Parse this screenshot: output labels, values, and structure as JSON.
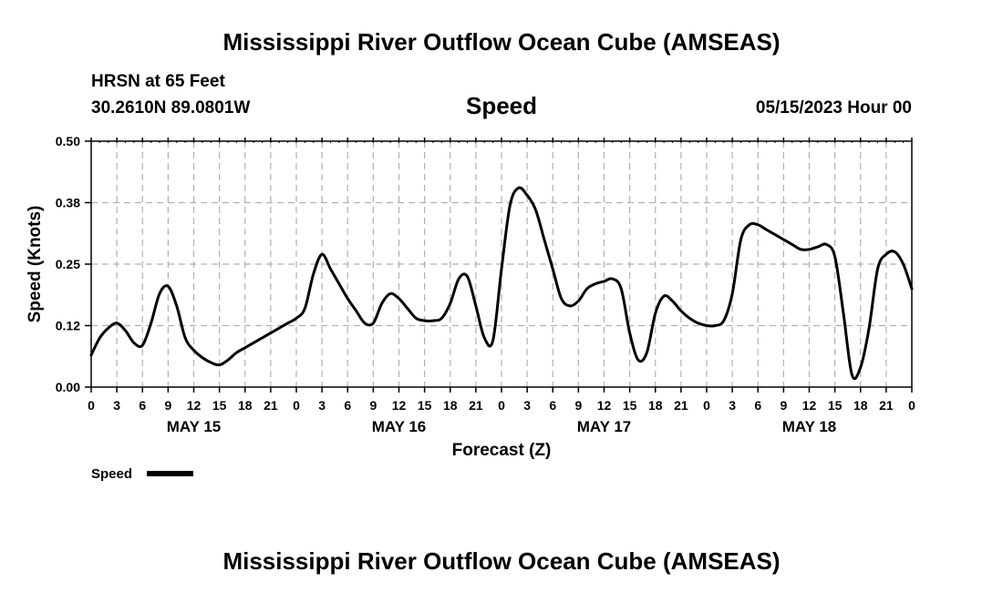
{
  "header": {
    "title": "Mississippi River Outflow Ocean Cube (AMSEAS)",
    "station": "HRSN at 65 Feet",
    "coords": "30.2610N  89.0801W",
    "metric": "Speed",
    "run_time": "05/15/2023 Hour 00"
  },
  "footer": {
    "title": "Mississippi River Outflow Ocean Cube (AMSEAS)"
  },
  "legend": {
    "label": "Speed"
  },
  "chart_data": {
    "type": "line",
    "title": "Speed",
    "xlabel": "Forecast (Z)",
    "ylabel": "Speed (Knots)",
    "xlim": [
      0,
      96
    ],
    "ylim": [
      0,
      0.5
    ],
    "y_ticks": [
      "0.00",
      "0.12",
      "0.25",
      "0.38",
      "0.50"
    ],
    "x_tick_labels": [
      "0",
      "3",
      "6",
      "9",
      "12",
      "15",
      "18",
      "21",
      "0",
      "3",
      "6",
      "9",
      "12",
      "15",
      "18",
      "21",
      "0",
      "3",
      "6",
      "9",
      "12",
      "15",
      "18",
      "21",
      "0",
      "3",
      "6",
      "9",
      "12",
      "15",
      "18",
      "21",
      "0"
    ],
    "day_labels": [
      {
        "label": "MAY 15",
        "hour": 12
      },
      {
        "label": "MAY 16",
        "hour": 36
      },
      {
        "label": "MAY 17",
        "hour": 60
      },
      {
        "label": "MAY 18",
        "hour": 84
      }
    ],
    "grid": true,
    "series": [
      {
        "name": "Speed",
        "x": [
          0,
          1,
          2,
          3,
          4,
          5,
          6,
          7,
          8,
          9,
          10,
          11,
          12,
          13,
          14,
          15,
          16,
          17,
          18,
          19,
          20,
          21,
          22,
          23,
          24,
          25,
          26,
          27,
          28,
          29,
          30,
          31,
          32,
          33,
          34,
          35,
          36,
          37,
          38,
          39,
          40,
          41,
          42,
          43,
          44,
          45,
          46,
          47,
          48,
          49,
          50,
          51,
          52,
          53,
          54,
          55,
          56,
          57,
          58,
          59,
          60,
          61,
          62,
          63,
          64,
          65,
          66,
          67,
          68,
          69,
          70,
          71,
          72,
          73,
          74,
          75,
          76,
          77,
          78,
          79,
          80,
          81,
          82,
          83,
          84,
          85,
          86,
          87,
          88,
          89,
          90,
          91,
          92,
          93,
          94,
          95,
          96
        ],
        "values": [
          0.065,
          0.1,
          0.12,
          0.13,
          0.115,
          0.09,
          0.085,
          0.13,
          0.19,
          0.205,
          0.165,
          0.1,
          0.075,
          0.06,
          0.05,
          0.045,
          0.055,
          0.07,
          0.08,
          0.09,
          0.1,
          0.11,
          0.12,
          0.13,
          0.14,
          0.16,
          0.23,
          0.27,
          0.24,
          0.21,
          0.18,
          0.155,
          0.13,
          0.13,
          0.17,
          0.19,
          0.18,
          0.16,
          0.14,
          0.135,
          0.135,
          0.14,
          0.17,
          0.22,
          0.225,
          0.165,
          0.1,
          0.095,
          0.24,
          0.37,
          0.405,
          0.39,
          0.36,
          0.3,
          0.24,
          0.18,
          0.165,
          0.175,
          0.2,
          0.21,
          0.215,
          0.22,
          0.2,
          0.11,
          0.055,
          0.07,
          0.15,
          0.185,
          0.175,
          0.155,
          0.14,
          0.13,
          0.125,
          0.125,
          0.135,
          0.19,
          0.3,
          0.33,
          0.33,
          0.32,
          0.31,
          0.3,
          0.29,
          0.28,
          0.28,
          0.285,
          0.29,
          0.265,
          0.15,
          0.025,
          0.04,
          0.12,
          0.24,
          0.27,
          0.275,
          0.25,
          0.2
        ]
      }
    ]
  }
}
